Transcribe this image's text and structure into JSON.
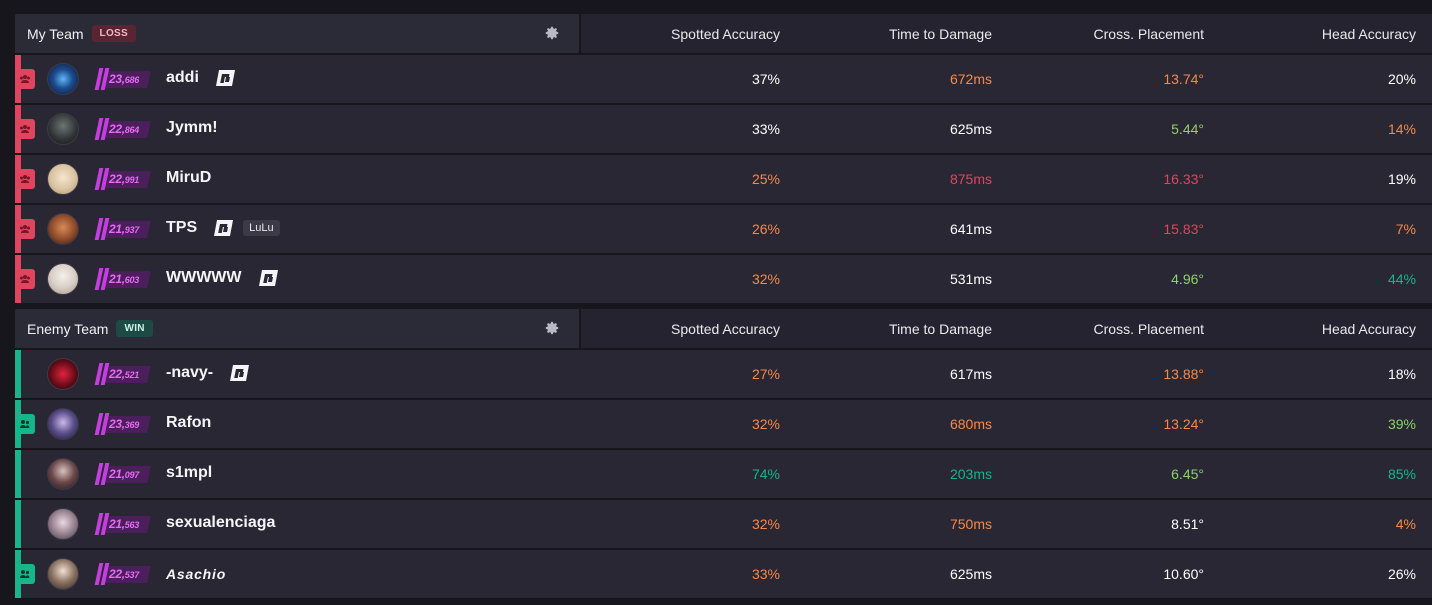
{
  "colors": {
    "white": "#ffffff",
    "orange": "#f6894a",
    "red": "#e0455f",
    "green": "#8ed16a",
    "teal": "#16b58a"
  },
  "headers": [
    "Spotted Accuracy",
    "Time to Damage",
    "Cross. Placement",
    "Head Accuracy"
  ],
  "my_team": {
    "label": "My Team",
    "result": "LOSS",
    "settings_icon": "gear-icon",
    "players": [
      {
        "name": "addi",
        "rank_main": "23,",
        "rank_small": "686",
        "logo": true,
        "tag": "",
        "stats": [
          {
            "v": "37%",
            "c": "white"
          },
          {
            "v": "672ms",
            "c": "orange"
          },
          {
            "v": "13.74°",
            "c": "orange"
          },
          {
            "v": "20%",
            "c": "white"
          }
        ],
        "party": "red"
      },
      {
        "name": "Jymm!",
        "rank_main": "22,",
        "rank_small": "864",
        "logo": false,
        "tag": "",
        "stats": [
          {
            "v": "33%",
            "c": "white"
          },
          {
            "v": "625ms",
            "c": "white"
          },
          {
            "v": "5.44°",
            "c": "green"
          },
          {
            "v": "14%",
            "c": "orange"
          }
        ],
        "party": "red"
      },
      {
        "name": "MiruD",
        "rank_main": "22,",
        "rank_small": "991",
        "logo": false,
        "tag": "",
        "stats": [
          {
            "v": "25%",
            "c": "orange"
          },
          {
            "v": "875ms",
            "c": "red"
          },
          {
            "v": "16.33°",
            "c": "red"
          },
          {
            "v": "19%",
            "c": "white"
          }
        ],
        "party": "red"
      },
      {
        "name": "TPS",
        "rank_main": "21,",
        "rank_small": "937",
        "logo": true,
        "tag": "LuLu",
        "stats": [
          {
            "v": "26%",
            "c": "orange"
          },
          {
            "v": "641ms",
            "c": "white"
          },
          {
            "v": "15.83°",
            "c": "red"
          },
          {
            "v": "7%",
            "c": "orange"
          }
        ],
        "party": "red"
      },
      {
        "name": "WWWWW",
        "rank_main": "21,",
        "rank_small": "603",
        "logo": true,
        "tag": "",
        "stats": [
          {
            "v": "32%",
            "c": "orange"
          },
          {
            "v": "531ms",
            "c": "white"
          },
          {
            "v": "4.96°",
            "c": "green"
          },
          {
            "v": "44%",
            "c": "teal"
          }
        ],
        "party": "red"
      }
    ]
  },
  "enemy_team": {
    "label": "Enemy Team",
    "result": "WIN",
    "settings_icon": "gear-icon",
    "players": [
      {
        "name": "-navy-",
        "rank_main": "22,",
        "rank_small": "521",
        "logo": true,
        "tag": "",
        "stats": [
          {
            "v": "27%",
            "c": "orange"
          },
          {
            "v": "617ms",
            "c": "white"
          },
          {
            "v": "13.88°",
            "c": "orange"
          },
          {
            "v": "18%",
            "c": "white"
          }
        ],
        "party": "none"
      },
      {
        "name": "Rafon",
        "rank_main": "23,",
        "rank_small": "369",
        "logo": false,
        "tag": "",
        "stats": [
          {
            "v": "32%",
            "c": "orange"
          },
          {
            "v": "680ms",
            "c": "orange"
          },
          {
            "v": "13.24°",
            "c": "orange"
          },
          {
            "v": "39%",
            "c": "green"
          }
        ],
        "party": "green"
      },
      {
        "name": "s1mpl",
        "rank_main": "21,",
        "rank_small": "097",
        "logo": false,
        "tag": "",
        "stats": [
          {
            "v": "74%",
            "c": "teal"
          },
          {
            "v": "203ms",
            "c": "teal"
          },
          {
            "v": "6.45°",
            "c": "green"
          },
          {
            "v": "85%",
            "c": "teal"
          }
        ],
        "party": "none"
      },
      {
        "name": "sexualenciaga",
        "rank_main": "21,",
        "rank_small": "563",
        "logo": false,
        "tag": "",
        "stats": [
          {
            "v": "32%",
            "c": "orange"
          },
          {
            "v": "750ms",
            "c": "orange"
          },
          {
            "v": "8.51°",
            "c": "white"
          },
          {
            "v": "4%",
            "c": "orange"
          }
        ],
        "party": "none"
      },
      {
        "name": "Asachio",
        "rank_main": "22,",
        "rank_small": "537",
        "logo": false,
        "tag": "",
        "italic": true,
        "stats": [
          {
            "v": "33%",
            "c": "orange"
          },
          {
            "v": "625ms",
            "c": "white"
          },
          {
            "v": "10.60°",
            "c": "white"
          },
          {
            "v": "26%",
            "c": "white"
          }
        ],
        "party": "green"
      }
    ]
  }
}
